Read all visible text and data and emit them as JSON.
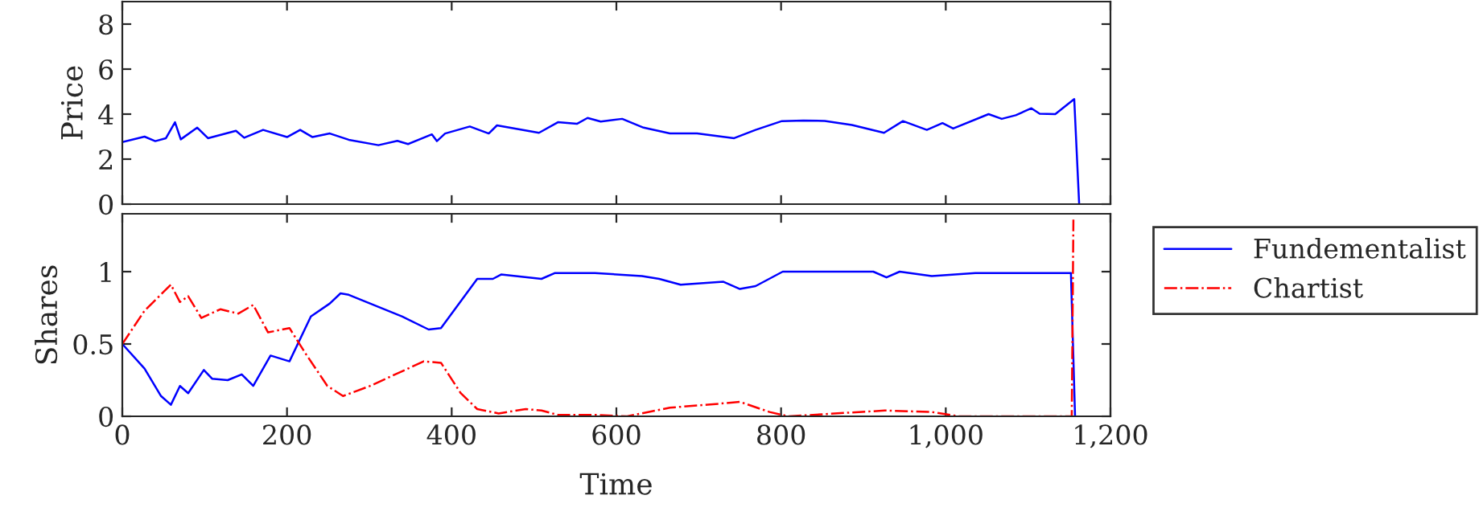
{
  "chart_data": [
    {
      "type": "line",
      "ylabel": "Price",
      "xlim": [
        0,
        1200
      ],
      "xticks": [
        0,
        200,
        400,
        600,
        800,
        1000,
        1200
      ],
      "ylim": [
        0,
        9
      ],
      "yticks": [
        0,
        2,
        4,
        6,
        8
      ],
      "tick_labels": "y",
      "grid": false,
      "legend": false,
      "series": [
        {
          "color": "#0000ff",
          "line_style": "solid",
          "x": [
            0,
            27,
            40,
            53,
            64,
            71,
            91,
            104,
            138,
            148,
            171,
            200,
            216,
            231,
            252,
            275,
            311,
            334,
            347,
            376,
            382,
            392,
            422,
            445,
            455,
            506,
            529,
            552,
            565,
            581,
            607,
            633,
            665,
            698,
            743,
            769,
            801,
            827,
            853,
            886,
            925,
            948,
            977,
            996,
            1009,
            1052,
            1068,
            1085,
            1104,
            1114,
            1133,
            1156,
            1162
          ],
          "values": [
            2.76,
            3.0,
            2.8,
            2.93,
            3.64,
            2.88,
            3.4,
            2.93,
            3.26,
            2.95,
            3.3,
            2.98,
            3.3,
            2.98,
            3.14,
            2.86,
            2.62,
            2.81,
            2.67,
            3.1,
            2.8,
            3.14,
            3.45,
            3.14,
            3.5,
            3.17,
            3.64,
            3.57,
            3.83,
            3.67,
            3.79,
            3.4,
            3.14,
            3.14,
            2.93,
            3.3,
            3.69,
            3.71,
            3.7,
            3.52,
            3.17,
            3.69,
            3.3,
            3.6,
            3.36,
            4.0,
            3.79,
            3.95,
            4.26,
            4.02,
            4.0,
            4.67,
            0
          ]
        }
      ]
    },
    {
      "type": "line",
      "xlabel": "Time",
      "ylabel": "Shares",
      "xlim": [
        0,
        1200
      ],
      "xticks": [
        0,
        200,
        400,
        600,
        800,
        {
          "value": 1000,
          "label": "1,000"
        },
        {
          "value": 1200,
          "label": "1,200"
        }
      ],
      "ylim": [
        0,
        1.4
      ],
      "yticks": [
        0,
        0.5,
        1
      ],
      "grid": false,
      "legend": "right",
      "series": [
        {
          "name": "Fundementalist",
          "color": "#0000ff",
          "line_style": "solid",
          "x": [
            0,
            27,
            47,
            59,
            70,
            80,
            99,
            109,
            128,
            145,
            159,
            180,
            203,
            229,
            252,
            265,
            275,
            340,
            372,
            387,
            431,
            450,
            460,
            509,
            525,
            574,
            631,
            652,
            678,
            730,
            750,
            769,
            802,
            912,
            928,
            944,
            983,
            1036,
            1152,
            1157
          ],
          "values": [
            0.5,
            0.33,
            0.14,
            0.08,
            0.21,
            0.16,
            0.32,
            0.26,
            0.25,
            0.29,
            0.21,
            0.42,
            0.38,
            0.69,
            0.78,
            0.85,
            0.84,
            0.69,
            0.6,
            0.61,
            0.95,
            0.95,
            0.98,
            0.95,
            0.99,
            0.99,
            0.97,
            0.95,
            0.91,
            0.93,
            0.88,
            0.9,
            1.0,
            1.0,
            0.96,
            1.0,
            0.97,
            0.99,
            0.99,
            0
          ]
        },
        {
          "name": "Chartist",
          "color": "#ff0000",
          "line_style": "dashdot",
          "x": [
            0,
            27,
            59,
            70,
            80,
            96,
            119,
            141,
            159,
            177,
            203,
            223,
            249,
            268,
            301,
            366,
            387,
            411,
            431,
            457,
            490,
            509,
            529,
            574,
            613,
            665,
            711,
            750,
            786,
            809,
            926,
            983,
            1016,
            1153,
            1155
          ],
          "values": [
            0.5,
            0.73,
            0.91,
            0.79,
            0.83,
            0.68,
            0.74,
            0.71,
            0.77,
            0.58,
            0.61,
            0.43,
            0.21,
            0.14,
            0.21,
            0.38,
            0.37,
            0.16,
            0.05,
            0.02,
            0.05,
            0.04,
            0.01,
            0.01,
            0,
            0.06,
            0.08,
            0.1,
            0.03,
            0,
            0.04,
            0.03,
            0,
            0,
            1.36
          ]
        }
      ]
    }
  ]
}
